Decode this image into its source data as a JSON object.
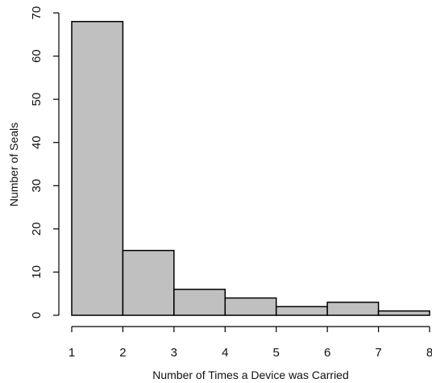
{
  "chart_data": {
    "type": "bar",
    "subtype": "histogram",
    "title": "",
    "xlabel": "Number of Times a Device was Carried",
    "ylabel": "Number of Seals",
    "bins": [
      {
        "start": 1,
        "end": 2,
        "value": 68
      },
      {
        "start": 2,
        "end": 3,
        "value": 15
      },
      {
        "start": 3,
        "end": 4,
        "value": 6
      },
      {
        "start": 4,
        "end": 5,
        "value": 4
      },
      {
        "start": 5,
        "end": 6,
        "value": 2
      },
      {
        "start": 6,
        "end": 7,
        "value": 3
      },
      {
        "start": 7,
        "end": 8,
        "value": 1
      }
    ],
    "xlim": [
      1,
      8
    ],
    "ylim": [
      0,
      70
    ],
    "xticks": [
      1,
      2,
      3,
      4,
      5,
      6,
      7,
      8
    ],
    "yticks": [
      0,
      10,
      20,
      30,
      40,
      50,
      60,
      70
    ],
    "grid": false,
    "legend": "none",
    "colors": {
      "bar_fill": "#c0c0c0",
      "bar_stroke": "#000000",
      "axis": "#000000",
      "text": "#111111"
    }
  }
}
